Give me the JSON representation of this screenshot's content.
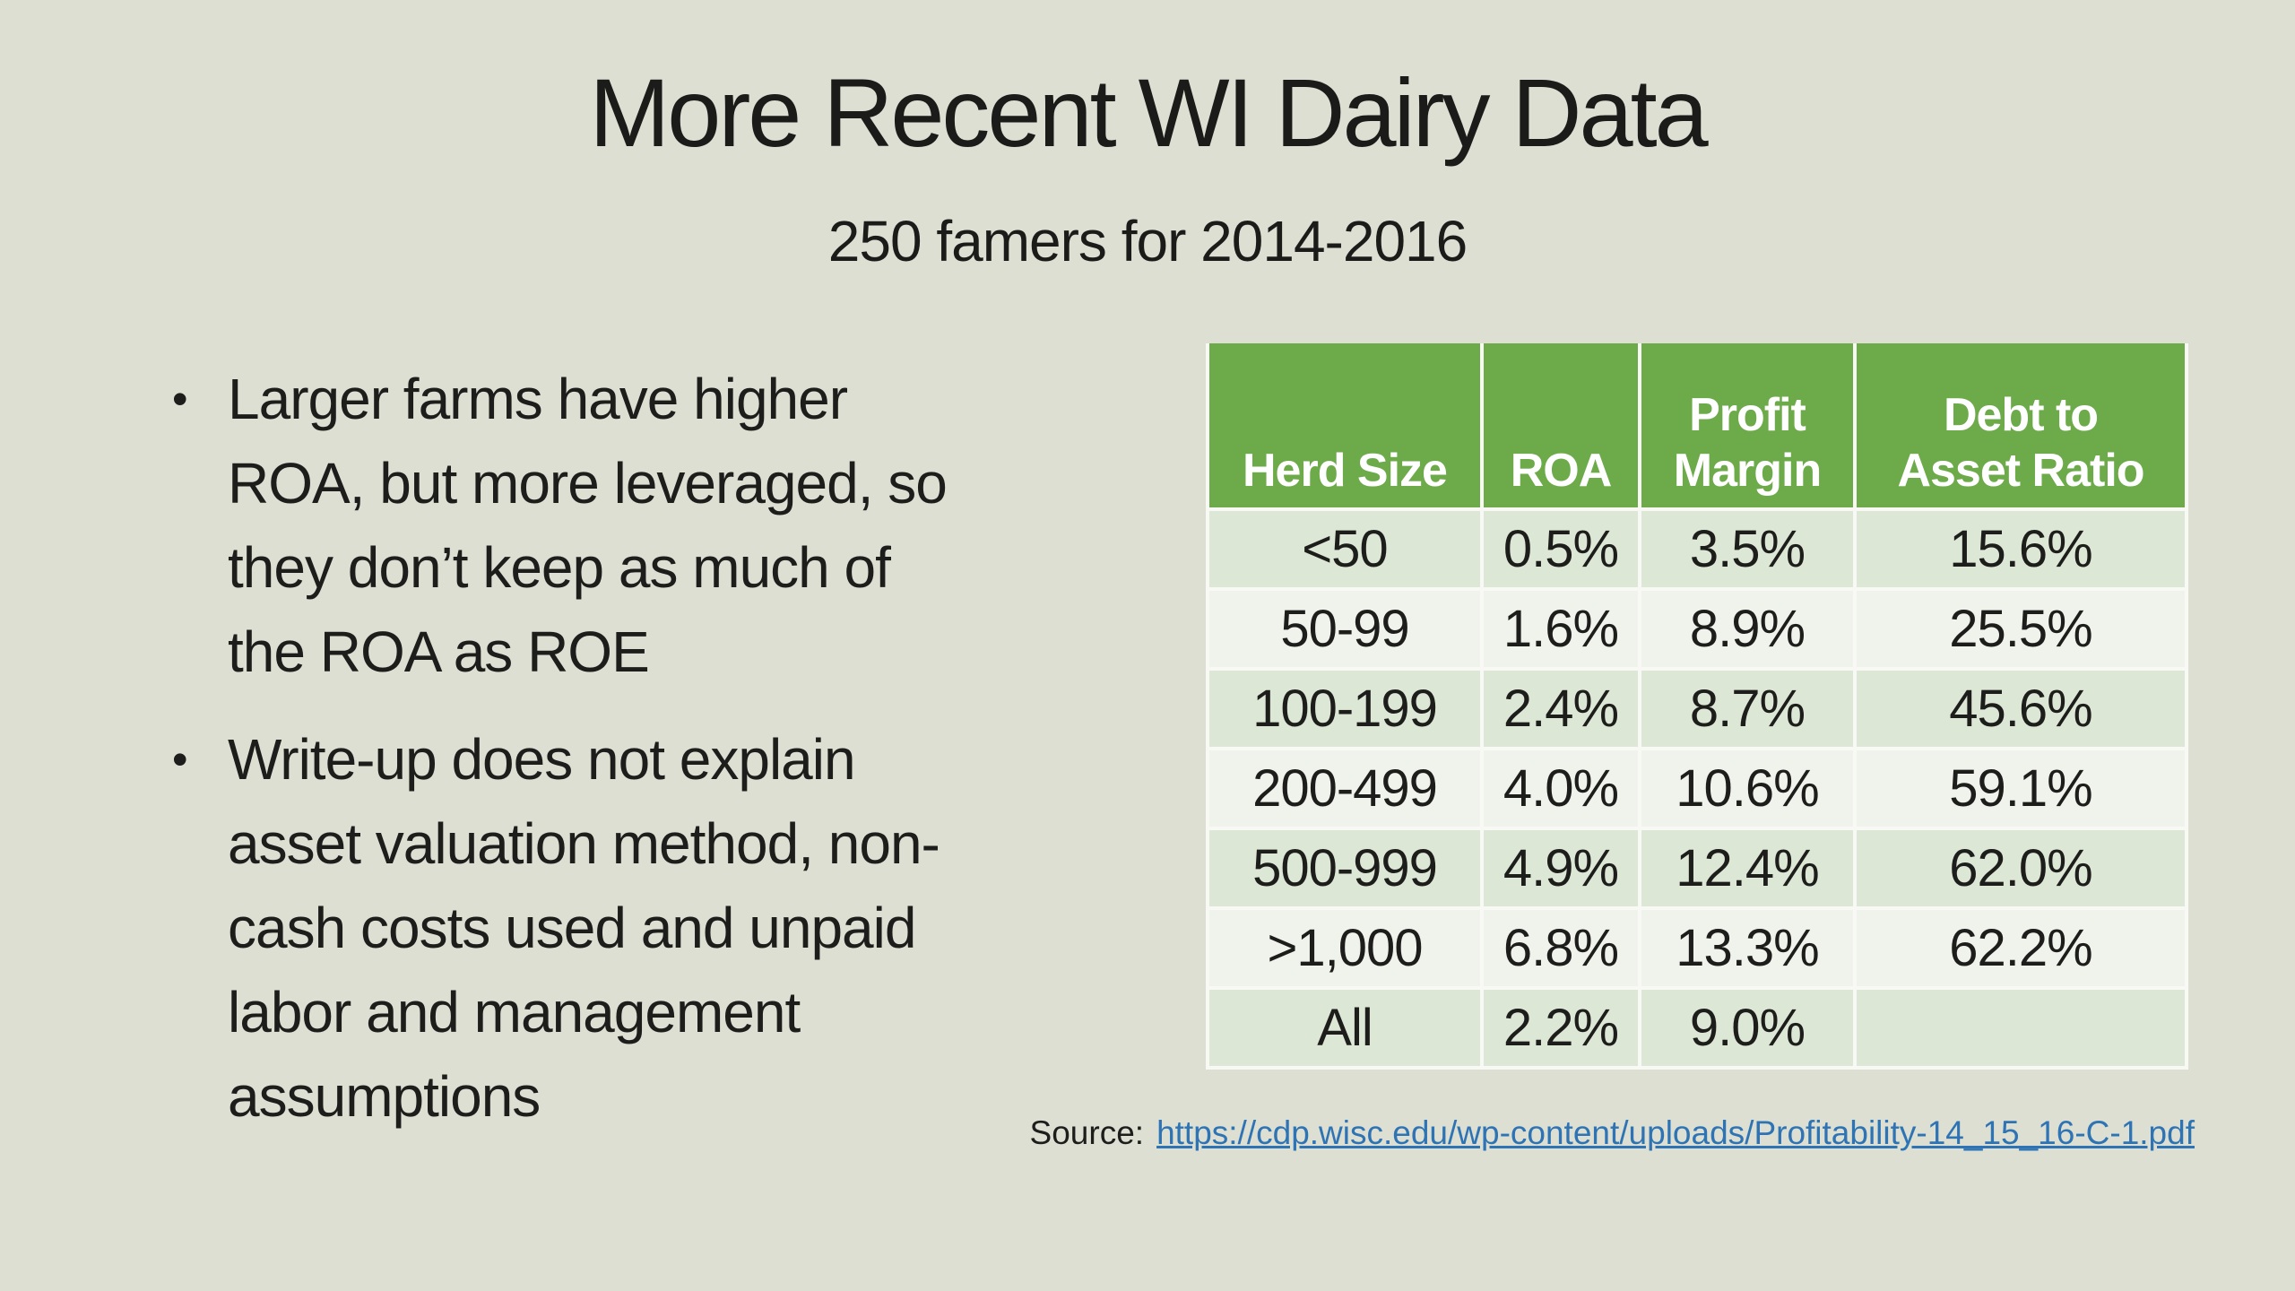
{
  "slide": {
    "title": "More Recent WI Dairy Data",
    "subtitle": "250 famers for 2014-2016"
  },
  "bullets": [
    {
      "lines": [
        "Larger farms have higher",
        "ROA, but more leveraged, so",
        "they don’t keep as much of",
        "the ROA as ROE"
      ]
    },
    {
      "lines": [
        "Write-up does not explain",
        "asset valuation method, non-",
        "cash costs used and unpaid",
        "labor and management",
        "assumptions"
      ]
    }
  ],
  "table": {
    "headers": [
      "Herd Size",
      "ROA",
      "Profit\nMargin",
      "Debt to\nAsset Ratio"
    ],
    "rows": [
      [
        "<50",
        "0.5%",
        "3.5%",
        "15.6%"
      ],
      [
        "50-99",
        "1.6%",
        "8.9%",
        "25.5%"
      ],
      [
        "100-199",
        "2.4%",
        "8.7%",
        "45.6%"
      ],
      [
        "200-499",
        "4.0%",
        "10.6%",
        "59.1%"
      ],
      [
        "500-999",
        "4.9%",
        "12.4%",
        "62.0%"
      ],
      [
        ">1,000",
        "6.8%",
        "13.3%",
        "62.2%"
      ],
      [
        "All",
        "2.2%",
        "9.0%",
        ""
      ]
    ]
  },
  "source": {
    "label": "Source:",
    "link_text": "https://cdp.wisc.edu/wp-content/uploads/Profitability-14_15_16-C-1.pdf"
  },
  "colors": {
    "background": "#dcdfd2",
    "header_green": "#6daa4a",
    "row_light_green": "#dde7d5",
    "row_off_white": "#f0f2ec",
    "gridline": "#f8f9f4",
    "link_blue": "#2e74b5",
    "text": "#1d1d1b"
  }
}
